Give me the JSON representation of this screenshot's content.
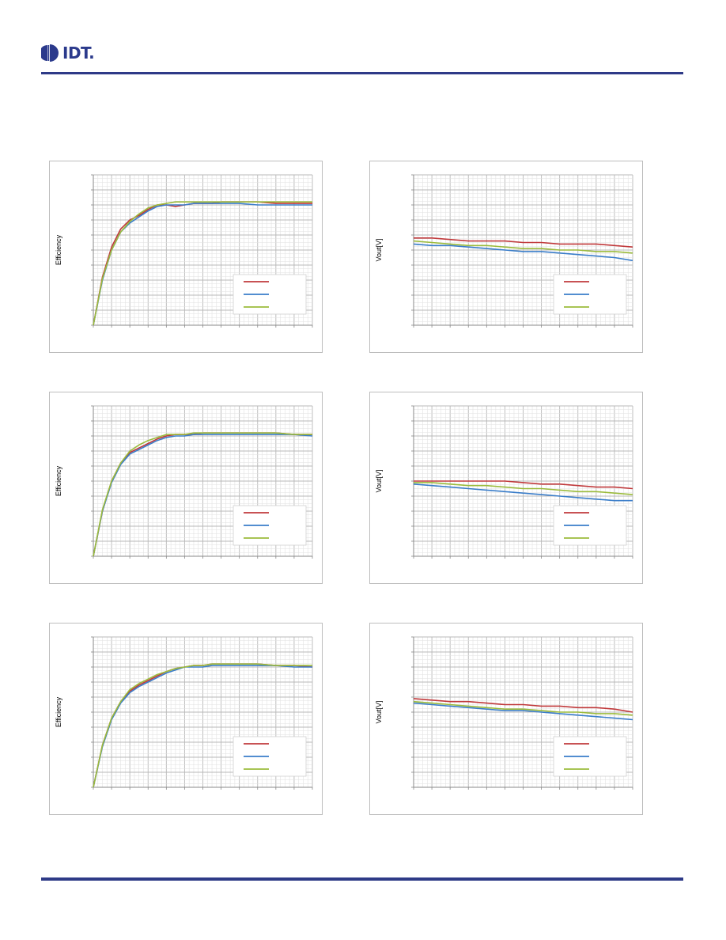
{
  "header": {
    "logo_text": "IDT.",
    "brand_color": "#2b3a8c",
    "rule_color": "#2e3a87"
  },
  "series_colors": [
    "#c0393b",
    "#3a7dc9",
    "#9bbb3c"
  ],
  "chart_data": [
    {
      "type": "line",
      "ylabel": "Efficiency",
      "xlim": [
        0,
        12
      ],
      "ylim": [
        0,
        1
      ],
      "legend_placement": "bottom-right",
      "grid": true,
      "series": [
        {
          "color": "#c0393b",
          "x": [
            0,
            0.5,
            1,
            1.5,
            2,
            2.5,
            3,
            3.5,
            4,
            4.5,
            5,
            5.5,
            6,
            6.5,
            7,
            8,
            9,
            10,
            11,
            12
          ],
          "y": [
            0,
            0.32,
            0.52,
            0.64,
            0.7,
            0.73,
            0.77,
            0.8,
            0.8,
            0.79,
            0.8,
            0.81,
            0.81,
            0.81,
            0.82,
            0.82,
            0.82,
            0.81,
            0.81,
            0.81
          ]
        },
        {
          "color": "#3a7dc9",
          "x": [
            0,
            0.5,
            1,
            1.5,
            2,
            2.5,
            3,
            3.5,
            4,
            4.5,
            5,
            5.5,
            6,
            6.5,
            7,
            8,
            9,
            10,
            11,
            12
          ],
          "y": [
            0,
            0.3,
            0.5,
            0.62,
            0.68,
            0.72,
            0.76,
            0.79,
            0.8,
            0.8,
            0.8,
            0.81,
            0.81,
            0.81,
            0.81,
            0.81,
            0.8,
            0.8,
            0.8,
            0.8
          ]
        },
        {
          "color": "#9bbb3c",
          "x": [
            0,
            0.5,
            1,
            1.5,
            2,
            2.5,
            3,
            3.5,
            4,
            4.5,
            5,
            5.5,
            6,
            6.5,
            7,
            8,
            9,
            10,
            11,
            12
          ],
          "y": [
            0,
            0.31,
            0.5,
            0.62,
            0.69,
            0.74,
            0.78,
            0.8,
            0.81,
            0.82,
            0.82,
            0.82,
            0.82,
            0.82,
            0.82,
            0.82,
            0.82,
            0.82,
            0.82,
            0.82
          ]
        }
      ]
    },
    {
      "type": "line",
      "ylabel": "Vout[V]",
      "xlim": [
        0,
        12
      ],
      "ylim": [
        0,
        1
      ],
      "legend_placement": "bottom-right",
      "grid": true,
      "series": [
        {
          "color": "#c0393b",
          "x": [
            0,
            1,
            2,
            3,
            4,
            5,
            6,
            7,
            8,
            9,
            10,
            11,
            12
          ],
          "y": [
            0.58,
            0.58,
            0.57,
            0.56,
            0.56,
            0.56,
            0.55,
            0.55,
            0.54,
            0.54,
            0.54,
            0.53,
            0.52
          ]
        },
        {
          "color": "#3a7dc9",
          "x": [
            0,
            1,
            2,
            3,
            4,
            5,
            6,
            7,
            8,
            9,
            10,
            11,
            12
          ],
          "y": [
            0.54,
            0.53,
            0.53,
            0.52,
            0.51,
            0.5,
            0.49,
            0.49,
            0.48,
            0.47,
            0.46,
            0.45,
            0.43
          ]
        },
        {
          "color": "#9bbb3c",
          "x": [
            0,
            1,
            2,
            3,
            4,
            5,
            6,
            7,
            8,
            9,
            10,
            11,
            12
          ],
          "y": [
            0.56,
            0.55,
            0.54,
            0.53,
            0.53,
            0.52,
            0.51,
            0.51,
            0.5,
            0.5,
            0.49,
            0.49,
            0.48
          ]
        }
      ]
    },
    {
      "type": "line",
      "ylabel": "Efficiency",
      "xlim": [
        0,
        12
      ],
      "ylim": [
        0,
        1
      ],
      "legend_placement": "bottom-right",
      "grid": true,
      "series": [
        {
          "color": "#c0393b",
          "x": [
            0,
            0.5,
            1,
            1.5,
            2,
            2.5,
            3,
            3.5,
            4,
            4.5,
            5,
            5.5,
            6,
            6.5,
            7,
            8,
            9,
            10,
            11,
            12
          ],
          "y": [
            0,
            0.3,
            0.5,
            0.62,
            0.69,
            0.72,
            0.75,
            0.78,
            0.8,
            0.81,
            0.81,
            0.81,
            0.82,
            0.82,
            0.82,
            0.82,
            0.82,
            0.82,
            0.81,
            0.81
          ]
        },
        {
          "color": "#3a7dc9",
          "x": [
            0,
            0.5,
            1,
            1.5,
            2,
            2.5,
            3,
            3.5,
            4,
            4.5,
            5,
            5.5,
            6,
            6.5,
            7,
            8,
            9,
            10,
            11,
            12
          ],
          "y": [
            0,
            0.3,
            0.49,
            0.61,
            0.68,
            0.71,
            0.74,
            0.77,
            0.79,
            0.8,
            0.8,
            0.81,
            0.81,
            0.81,
            0.81,
            0.81,
            0.81,
            0.81,
            0.81,
            0.8
          ]
        },
        {
          "color": "#9bbb3c",
          "x": [
            0,
            0.5,
            1,
            1.5,
            2,
            2.5,
            3,
            3.5,
            4,
            4.5,
            5,
            5.5,
            6,
            6.5,
            7,
            8,
            9,
            10,
            11,
            12
          ],
          "y": [
            0,
            0.31,
            0.5,
            0.62,
            0.7,
            0.74,
            0.77,
            0.79,
            0.81,
            0.81,
            0.81,
            0.82,
            0.82,
            0.82,
            0.82,
            0.82,
            0.82,
            0.82,
            0.81,
            0.81
          ]
        }
      ]
    },
    {
      "type": "line",
      "ylabel": "Vout[V]",
      "xlim": [
        0,
        12
      ],
      "ylim": [
        0,
        1
      ],
      "legend_placement": "bottom-right",
      "grid": true,
      "series": [
        {
          "color": "#c0393b",
          "x": [
            0,
            1,
            2,
            3,
            4,
            5,
            6,
            7,
            8,
            9,
            10,
            11,
            12
          ],
          "y": [
            0.5,
            0.5,
            0.5,
            0.5,
            0.5,
            0.5,
            0.49,
            0.48,
            0.48,
            0.47,
            0.46,
            0.46,
            0.45
          ]
        },
        {
          "color": "#3a7dc9",
          "x": [
            0,
            1,
            2,
            3,
            4,
            5,
            6,
            7,
            8,
            9,
            10,
            11,
            12
          ],
          "y": [
            0.48,
            0.47,
            0.46,
            0.45,
            0.44,
            0.43,
            0.42,
            0.41,
            0.4,
            0.39,
            0.38,
            0.37,
            0.37
          ]
        },
        {
          "color": "#9bbb3c",
          "x": [
            0,
            1,
            2,
            3,
            4,
            5,
            6,
            7,
            8,
            9,
            10,
            11,
            12
          ],
          "y": [
            0.49,
            0.49,
            0.48,
            0.47,
            0.47,
            0.46,
            0.45,
            0.45,
            0.44,
            0.43,
            0.43,
            0.42,
            0.41
          ]
        }
      ]
    },
    {
      "type": "line",
      "ylabel": "Efficiency",
      "xlim": [
        0,
        12
      ],
      "ylim": [
        0,
        1
      ],
      "legend_placement": "bottom-right",
      "grid": true,
      "series": [
        {
          "color": "#c0393b",
          "x": [
            0,
            0.5,
            1,
            1.5,
            2,
            2.5,
            3,
            3.5,
            4,
            4.5,
            5,
            5.5,
            6,
            6.5,
            7,
            8,
            9,
            10,
            11,
            12
          ],
          "y": [
            0,
            0.28,
            0.46,
            0.57,
            0.64,
            0.68,
            0.71,
            0.74,
            0.77,
            0.79,
            0.8,
            0.81,
            0.81,
            0.82,
            0.82,
            0.82,
            0.82,
            0.81,
            0.81,
            0.8
          ]
        },
        {
          "color": "#3a7dc9",
          "x": [
            0,
            0.5,
            1,
            1.5,
            2,
            2.5,
            3,
            3.5,
            4,
            4.5,
            5,
            5.5,
            6,
            6.5,
            7,
            8,
            9,
            10,
            11,
            12
          ],
          "y": [
            0,
            0.27,
            0.45,
            0.56,
            0.63,
            0.67,
            0.7,
            0.73,
            0.76,
            0.78,
            0.8,
            0.8,
            0.8,
            0.81,
            0.81,
            0.81,
            0.81,
            0.81,
            0.8,
            0.8
          ]
        },
        {
          "color": "#9bbb3c",
          "x": [
            0,
            0.5,
            1,
            1.5,
            2,
            2.5,
            3,
            3.5,
            4,
            4.5,
            5,
            5.5,
            6,
            6.5,
            7,
            8,
            9,
            10,
            11,
            12
          ],
          "y": [
            0,
            0.28,
            0.46,
            0.57,
            0.65,
            0.69,
            0.72,
            0.75,
            0.77,
            0.79,
            0.8,
            0.81,
            0.81,
            0.82,
            0.82,
            0.82,
            0.82,
            0.81,
            0.81,
            0.81
          ]
        }
      ]
    },
    {
      "type": "line",
      "ylabel": "Vout[V]",
      "xlim": [
        0,
        12
      ],
      "ylim": [
        0,
        1
      ],
      "legend_placement": "bottom-right",
      "grid": true,
      "series": [
        {
          "color": "#c0393b",
          "x": [
            0,
            1,
            2,
            3,
            4,
            5,
            6,
            7,
            8,
            9,
            10,
            11,
            12
          ],
          "y": [
            0.59,
            0.58,
            0.57,
            0.57,
            0.56,
            0.55,
            0.55,
            0.54,
            0.54,
            0.53,
            0.53,
            0.52,
            0.5
          ]
        },
        {
          "color": "#3a7dc9",
          "x": [
            0,
            1,
            2,
            3,
            4,
            5,
            6,
            7,
            8,
            9,
            10,
            11,
            12
          ],
          "y": [
            0.56,
            0.55,
            0.54,
            0.53,
            0.52,
            0.51,
            0.51,
            0.5,
            0.49,
            0.48,
            0.47,
            0.46,
            0.45
          ]
        },
        {
          "color": "#9bbb3c",
          "x": [
            0,
            1,
            2,
            3,
            4,
            5,
            6,
            7,
            8,
            9,
            10,
            11,
            12
          ],
          "y": [
            0.57,
            0.56,
            0.55,
            0.54,
            0.53,
            0.52,
            0.52,
            0.51,
            0.5,
            0.5,
            0.49,
            0.49,
            0.48
          ]
        }
      ]
    }
  ]
}
